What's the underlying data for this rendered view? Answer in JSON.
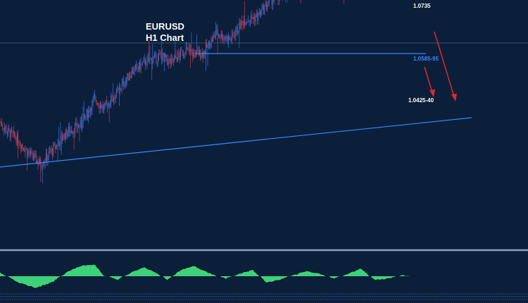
{
  "header": {
    "symbol": "EURUSD",
    "timeframe": "H1 Chart"
  },
  "colors": {
    "background": "#0b1f3b",
    "candle_up": "#3b6fd1",
    "candle_down": "#c0394b",
    "support_line": "#3a86ff",
    "trend_line": "#3a86ff",
    "arrow": "#e3262f",
    "oscillator_fill": "#3dd27a",
    "separator": "#8fa2b8"
  },
  "chart_data": {
    "type": "line",
    "instrument": "EURUSD",
    "timeframe": "H1",
    "price_path": {
      "x_index": [
        0,
        8,
        18,
        30,
        45,
        60,
        75,
        90,
        105,
        115,
        130,
        145,
        160,
        178,
        190,
        205,
        215,
        225,
        240,
        255,
        270,
        285,
        300,
        315,
        330,
        345,
        355,
        370,
        385,
        400,
        410,
        420,
        430,
        440,
        450,
        460
      ],
      "y": [
        1.0485,
        1.047,
        1.046,
        1.044,
        1.042,
        1.0445,
        1.047,
        1.048,
        1.052,
        1.0505,
        1.053,
        1.056,
        1.0575,
        1.0585,
        1.0575,
        1.0595,
        1.0588,
        1.059,
        1.062,
        1.061,
        1.064,
        1.0645,
        1.067,
        1.068,
        1.069,
        1.07,
        1.0695,
        1.0705,
        1.069,
        1.071,
        1.0725,
        1.07,
        1.069,
        1.0695,
        1.069,
        1.069
      ]
    },
    "levels": [
      {
        "label": "1.0735",
        "value": 1.0735
      },
      {
        "label": "1.0585-95",
        "value": 1.059
      },
      {
        "label": "1.0425-40",
        "value": 1.0432
      }
    ],
    "oscillator": {
      "x_index": [
        0,
        20,
        40,
        60,
        75,
        90,
        105,
        115,
        130,
        145,
        160,
        175,
        185,
        200,
        215,
        230,
        250,
        265,
        280,
        295,
        310,
        325,
        340,
        355,
        370,
        385,
        400,
        415,
        430,
        445,
        460
      ],
      "values": [
        0.3,
        -0.5,
        -0.9,
        -0.4,
        0.4,
        0.8,
        0.9,
        0.1,
        -0.3,
        0.3,
        0.7,
        0.2,
        -0.3,
        0.5,
        0.8,
        0.3,
        -0.2,
        0.2,
        0.5,
        -0.5,
        -0.3,
        0.1,
        0.4,
        0.2,
        -0.2,
        0.2,
        0.6,
        -0.3,
        -0.2,
        0.1,
        0.0
      ]
    }
  }
}
